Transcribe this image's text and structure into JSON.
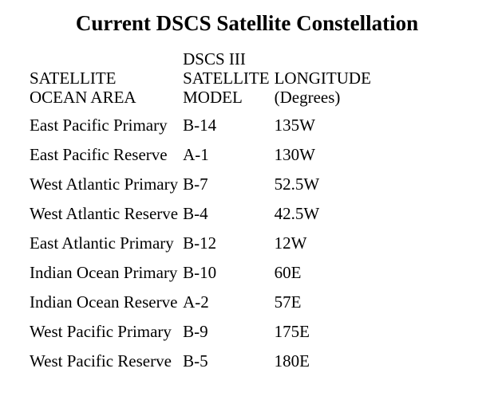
{
  "title": "Current DSCS Satellite Constellation",
  "headers": [
    "SATELLITE\nOCEAN AREA",
    "DSCS III\nSATELLITE\nMODEL",
    "LONGITUDE\n(Degrees)"
  ],
  "rows": [
    [
      "East Pacific Primary",
      "B-14",
      "135W"
    ],
    [
      "East Pacific Reserve",
      "A-1",
      "130W"
    ],
    [
      "West Atlantic Primary",
      "B-7",
      "52.5W"
    ],
    [
      "West Atlantic Reserve",
      "B-4",
      "42.5W"
    ],
    [
      "East Atlantic Primary",
      "B-12",
      "12W"
    ],
    [
      "Indian Ocean Primary",
      "B-10",
      "60E"
    ],
    [
      "Indian Ocean Reserve",
      "A-2",
      "57E"
    ],
    [
      "West Pacific Primary",
      "B-9",
      "175E"
    ],
    [
      "West Pacific Reserve",
      "B-5",
      "180E"
    ]
  ]
}
